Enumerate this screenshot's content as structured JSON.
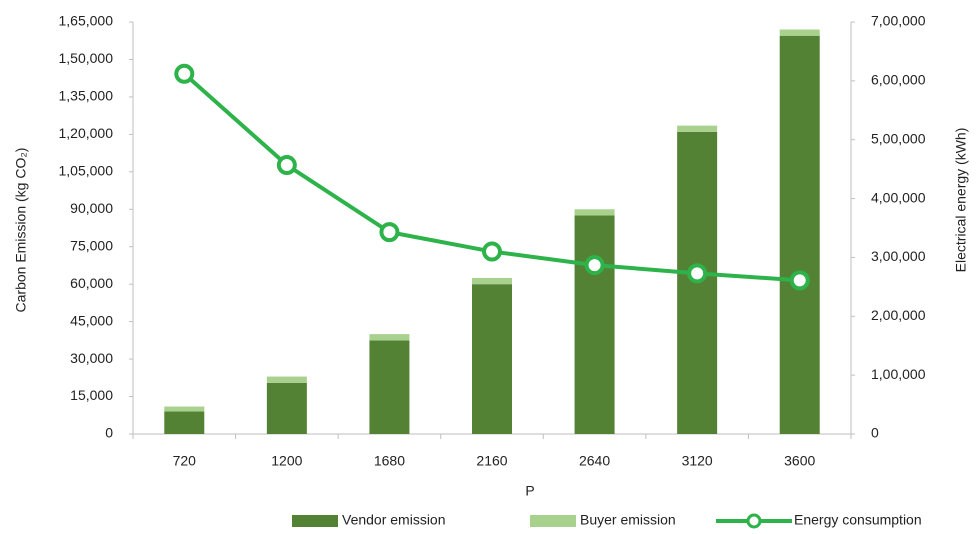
{
  "chart_data": {
    "type": "bar-line",
    "xlabel": "P",
    "ylabel": "Carbon Emission (kg CO₂)",
    "y2label": "Electrical energy (kWh)",
    "categories": [
      "720",
      "1200",
      "1680",
      "2160",
      "2640",
      "3120",
      "3600"
    ],
    "series": [
      {
        "name": "Vendor emission",
        "type": "bar",
        "stack": true,
        "color": "#548235",
        "values": [
          9000,
          20500,
          37500,
          60000,
          87500,
          121000,
          159500
        ]
      },
      {
        "name": "Buyer emission",
        "type": "bar",
        "stack": true,
        "color": "#a9d18e",
        "values": [
          2000,
          2500,
          2500,
          2500,
          2500,
          2500,
          2500
        ]
      },
      {
        "name": "Energy consumption",
        "type": "line",
        "axis": "y2",
        "color": "#2db34a",
        "values": [
          612000,
          457000,
          343000,
          310000,
          287000,
          273000,
          261000
        ]
      }
    ],
    "ylim": [
      0,
      165000
    ],
    "yticks": [
      0,
      {
        "value": 15000,
        "label": "15,000"
      },
      {
        "value": 30000,
        "label": "30,000"
      },
      {
        "value": 45000,
        "label": "45,000"
      },
      {
        "value": 60000,
        "label": "60,000"
      },
      {
        "value": 75000,
        "label": "75,000"
      },
      {
        "value": 90000,
        "label": "90,000"
      },
      {
        "value": 105000,
        "label": "1,05,000"
      },
      {
        "value": 120000,
        "label": "1,20,000"
      },
      {
        "value": 135000,
        "label": "1,35,000"
      },
      {
        "value": 150000,
        "label": "1,50,000"
      },
      {
        "value": 165000,
        "label": "1,65,000"
      }
    ],
    "y2lim": [
      0,
      700000
    ],
    "y2ticks": [
      0,
      {
        "value": 100000,
        "label": "1,00,000"
      },
      {
        "value": 200000,
        "label": "2,00,000"
      },
      {
        "value": 300000,
        "label": "3,00,000"
      },
      {
        "value": 400000,
        "label": "4,00,000"
      },
      {
        "value": 500000,
        "label": "5,00,000"
      },
      {
        "value": 600000,
        "label": "6,00,000"
      },
      {
        "value": 700000,
        "label": "7,00,000"
      }
    ],
    "grid": false,
    "legend": "bottom"
  }
}
